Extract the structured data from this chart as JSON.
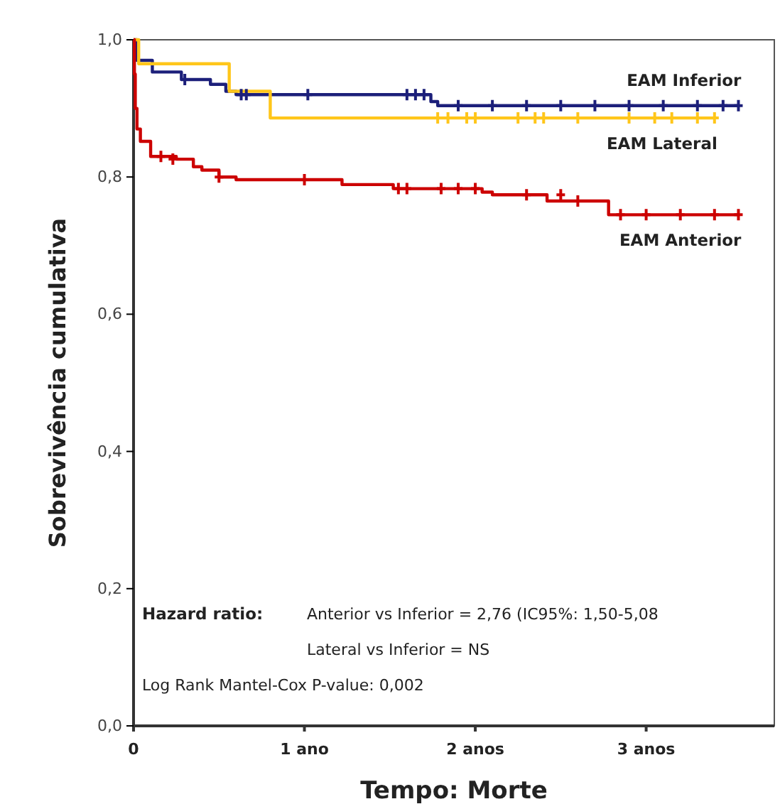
{
  "chart_data": {
    "type": "step",
    "xlabel": "Tempo: Morte",
    "ylabel": "Sobrevivência cumulativa",
    "xlim": [
      0,
      3.75
    ],
    "ylim": [
      0,
      1
    ],
    "xticks": [
      0,
      {
        "value": 1,
        "label": "1 ano"
      },
      {
        "value": 2,
        "label": "2 anos"
      },
      {
        "value": 3,
        "label": "3 anos"
      }
    ],
    "yticks": [
      {
        "value": 0,
        "label": "0,0"
      },
      {
        "value": 0.2,
        "label": "0,2"
      },
      {
        "value": 0.4,
        "label": "0,4"
      },
      {
        "value": 0.6,
        "label": "0,6"
      },
      {
        "value": 0.8,
        "label": "0,8"
      },
      {
        "value": 1,
        "label": "1,0"
      }
    ],
    "grid": false,
    "line_style": "solid",
    "series": [
      {
        "name": "EAM Inferior",
        "color": "#1c1f7a",
        "x": [
          0,
          0.02,
          0.11,
          0.28,
          0.45,
          0.54,
          0.6,
          1.74,
          1.78,
          3.54
        ],
        "values": [
          1,
          0.97,
          0.953,
          0.942,
          0.935,
          0.925,
          0.92,
          0.91,
          0.904,
          0.904
        ]
      },
      {
        "name": "EAM Lateral",
        "color": "#ffc61a",
        "x": [
          0,
          0.03,
          0.56,
          0.8,
          3.4
        ],
        "values": [
          1,
          0.965,
          0.925,
          0.886,
          0.886
        ]
      },
      {
        "name": "EAM Anterior",
        "color": "#cc0000",
        "x": [
          0,
          0.005,
          0.01,
          0.02,
          0.04,
          0.1,
          0.25,
          0.35,
          0.4,
          0.5,
          0.6,
          1.22,
          1.52,
          2.04,
          2.1,
          2.42,
          2.78,
          3.54
        ],
        "values": [
          1,
          0.95,
          0.9,
          0.87,
          0.852,
          0.83,
          0.826,
          0.815,
          0.81,
          0.8,
          0.796,
          0.789,
          0.783,
          0.778,
          0.774,
          0.765,
          0.745,
          0.745
        ]
      },
      {
        "type": "scatter",
        "marker": "cross",
        "color": "#1c1f7a",
        "x": [
          0.3,
          0.63,
          0.66,
          1.02,
          1.6,
          1.65,
          1.7,
          1.9,
          2.1,
          2.3,
          2.5,
          2.7,
          2.9,
          3.1,
          3.3,
          3.45,
          3.54
        ],
        "values": [
          0.942,
          0.92,
          0.92,
          0.92,
          0.92,
          0.92,
          0.92,
          0.904,
          0.904,
          0.904,
          0.904,
          0.904,
          0.904,
          0.904,
          0.904,
          0.904,
          0.904
        ]
      },
      {
        "type": "scatter",
        "marker": "cross",
        "color": "#ffc61a",
        "x": [
          1.78,
          1.84,
          1.95,
          2.0,
          2.25,
          2.35,
          2.4,
          2.6,
          2.9,
          3.05,
          3.15,
          3.3,
          3.4
        ],
        "values": [
          0.886,
          0.886,
          0.886,
          0.886,
          0.886,
          0.886,
          0.886,
          0.886,
          0.886,
          0.886,
          0.886,
          0.886,
          0.886
        ]
      },
      {
        "type": "scatter",
        "marker": "cross",
        "color": "#cc0000",
        "x": [
          0.16,
          0.23,
          0.5,
          1.0,
          1.55,
          1.6,
          1.8,
          1.9,
          2.0,
          2.3,
          2.5,
          2.6,
          2.85,
          3.0,
          3.2,
          3.4,
          3.54
        ],
        "values": [
          0.83,
          0.826,
          0.8,
          0.796,
          0.783,
          0.783,
          0.783,
          0.783,
          0.783,
          0.774,
          0.774,
          0.765,
          0.745,
          0.745,
          0.745,
          0.745,
          0.745
        ]
      }
    ],
    "annotations": [
      "Hazard ratio:",
      "Anterior vs Inferior = 2,76 (IC95%: 1,50-5,08",
      "Lateral vs Inferior = NS",
      "Log Rank  Mantel-Cox  P-value: 0,002"
    ]
  }
}
